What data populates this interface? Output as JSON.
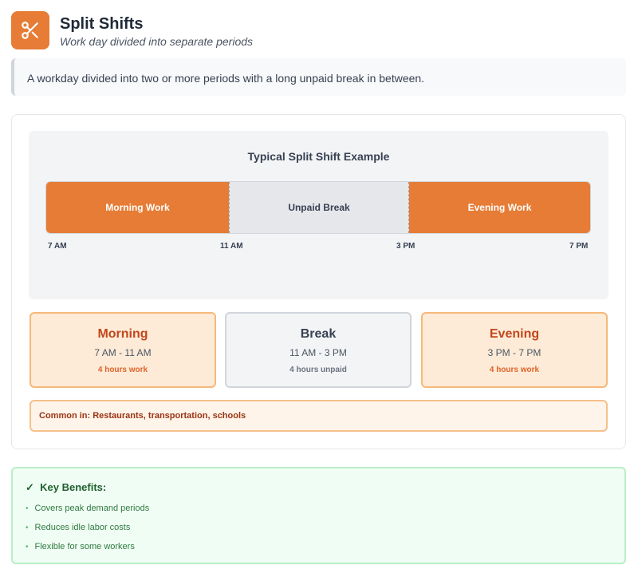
{
  "header": {
    "title": "Split Shifts",
    "subtitle": "Work day divided into separate periods",
    "icon": "scissors-icon",
    "accent": "#e67c35"
  },
  "description": "A workday divided into two or more periods with a long unpaid break in between.",
  "timeline": {
    "title": "Typical Split Shift Example",
    "segments": [
      {
        "label": "Morning Work"
      },
      {
        "label": "Unpaid Break"
      },
      {
        "label": "Evening Work"
      }
    ],
    "ticks": [
      "7 AM",
      "11 AM",
      "3 PM",
      "7 PM"
    ]
  },
  "periods": [
    {
      "name": "Morning",
      "time": "7 AM - 11 AM",
      "detail": "4 hours work"
    },
    {
      "name": "Break",
      "time": "11 AM - 3 PM",
      "detail": "4 hours unpaid"
    },
    {
      "name": "Evening",
      "time": "3 PM - 7 PM",
      "detail": "4 hours work"
    }
  ],
  "common": "Common in: Restaurants, transportation, schools",
  "benefits": {
    "check": "✓",
    "title": "Key Benefits:",
    "items": [
      "Covers peak demand periods",
      "Reduces idle labor costs",
      "Flexible for some workers"
    ]
  }
}
